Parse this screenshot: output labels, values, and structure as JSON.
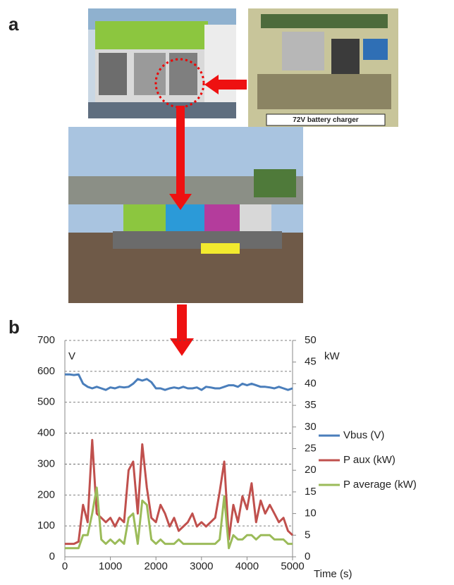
{
  "panels": {
    "a": "a",
    "b": "b"
  },
  "photo_caption": "72V battery charger",
  "chart_data": {
    "type": "line",
    "x_label": "Time (s)",
    "y_label": "V",
    "y2_label": "kW",
    "xlim": [
      0,
      5000
    ],
    "xticks": [
      0,
      1000,
      2000,
      3000,
      4000,
      5000
    ],
    "ylim": [
      0,
      700
    ],
    "yticks": [
      0,
      100,
      200,
      300,
      400,
      500,
      600,
      700
    ],
    "y2lim": [
      0,
      50
    ],
    "y2ticks": [
      0,
      5,
      10,
      15,
      20,
      25,
      30,
      35,
      40,
      45,
      50
    ],
    "grid": true,
    "legend": "right",
    "x": [
      0,
      100,
      200,
      300,
      400,
      500,
      600,
      700,
      800,
      900,
      1000,
      1100,
      1200,
      1300,
      1400,
      1500,
      1600,
      1700,
      1800,
      1900,
      2000,
      2100,
      2200,
      2300,
      2400,
      2500,
      2600,
      2700,
      2800,
      2900,
      3000,
      3100,
      3200,
      3300,
      3400,
      3500,
      3600,
      3700,
      3800,
      3900,
      4000,
      4100,
      4200,
      4300,
      4400,
      4500,
      4600,
      4700,
      4800,
      4900,
      5000
    ],
    "series": [
      {
        "name": "Vbus (V)",
        "color": "#4a7ebb",
        "axis": "y",
        "values": [
          590,
          590,
          588,
          590,
          560,
          550,
          545,
          550,
          545,
          540,
          548,
          545,
          550,
          548,
          550,
          560,
          575,
          570,
          575,
          565,
          545,
          545,
          540,
          545,
          548,
          545,
          550,
          545,
          545,
          548,
          540,
          550,
          548,
          545,
          545,
          550,
          555,
          555,
          550,
          560,
          555,
          560,
          555,
          550,
          550,
          548,
          545,
          550,
          545,
          540,
          545
        ]
      },
      {
        "name": "P aux (kW)",
        "color": "#c0504d",
        "axis": "y2",
        "values": [
          3,
          3,
          3,
          3.5,
          12,
          8,
          27,
          10,
          9,
          8,
          9,
          7,
          9,
          8,
          20,
          22,
          10,
          26,
          16,
          9,
          8,
          12,
          10,
          7,
          9,
          6,
          7,
          8,
          10,
          7,
          8,
          7,
          8,
          9,
          15,
          22,
          4,
          12,
          8,
          14,
          11,
          17,
          8,
          13,
          10,
          12,
          10,
          8,
          9,
          6,
          5
        ]
      },
      {
        "name": "P average (kW)",
        "color": "#9bbb59",
        "axis": "y2",
        "values": [
          2,
          2,
          2,
          2,
          5,
          5,
          10,
          16,
          4,
          3,
          4,
          3,
          4,
          3,
          9,
          10,
          3,
          13,
          12,
          4,
          3,
          4,
          3,
          3,
          3,
          4,
          3,
          3,
          3,
          3,
          3,
          3,
          3,
          3,
          4,
          14,
          2,
          5,
          4,
          4,
          5,
          5,
          4,
          5,
          5,
          5,
          4,
          4,
          4,
          3,
          3
        ]
      }
    ]
  }
}
